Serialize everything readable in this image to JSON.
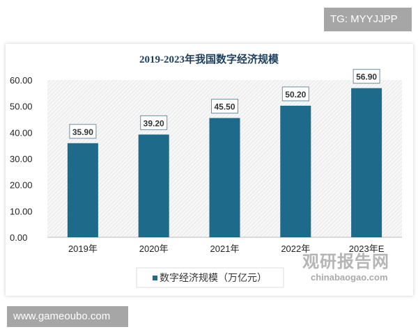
{
  "watermarks": {
    "tg": "TG: MYYJJPP",
    "site": "www.gameoubo.com",
    "brand_cn": "观研报告网",
    "brand_en": "chinabaogao.com"
  },
  "chart_data": {
    "type": "bar",
    "title": "2019-2023年我国数字经济规模",
    "categories": [
      "2019年",
      "2020年",
      "2021年",
      "2022年",
      "2023年E"
    ],
    "series": [
      {
        "name": "数字经济规模（万亿元）",
        "values": [
          35.9,
          39.2,
          45.5,
          50.2,
          56.9
        ],
        "color": "#1e6a8a"
      }
    ],
    "data_labels": [
      "35.90",
      "39.20",
      "45.50",
      "50.20",
      "56.90"
    ],
    "ylim": [
      0,
      60
    ],
    "yticks": [
      "0.00",
      "10.00",
      "20.00",
      "30.00",
      "40.00",
      "50.00",
      "60.00"
    ],
    "legend": "bottom",
    "grid": false,
    "background": "hatched"
  }
}
